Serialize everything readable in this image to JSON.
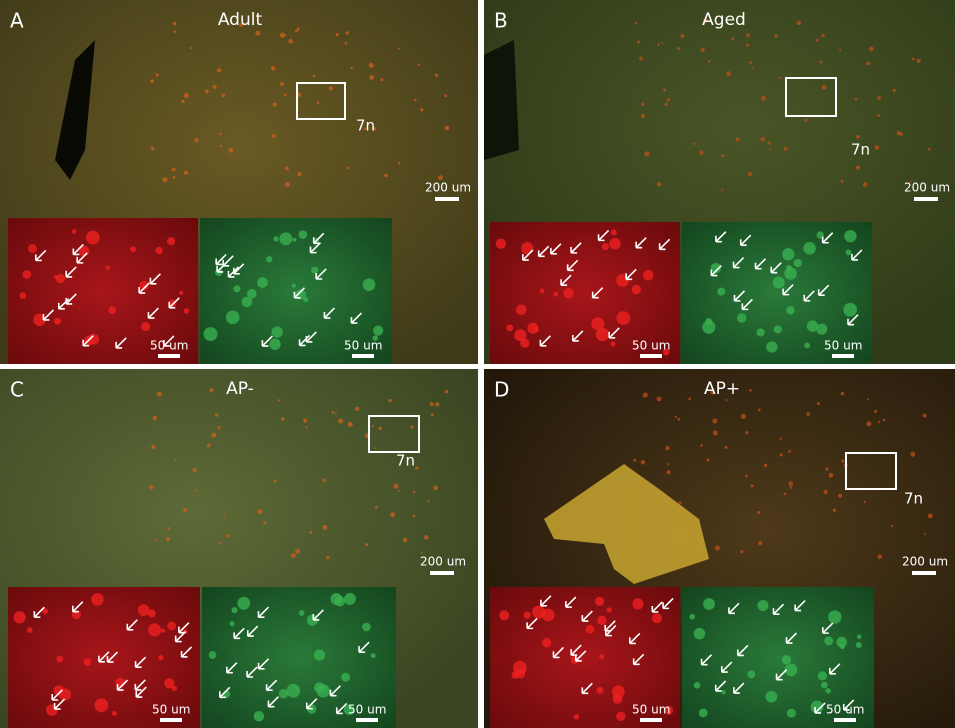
{
  "panels": [
    {
      "letter": "A",
      "title": "Adult",
      "region_label": "7n",
      "scale_label": "200 um",
      "insets": [
        {
          "scale_label": "50 um"
        },
        {
          "scale_label": "50 um"
        }
      ]
    },
    {
      "letter": "B",
      "title": "Aged",
      "region_label": "7n",
      "scale_label": "200 um",
      "insets": [
        {
          "scale_label": "50 um"
        },
        {
          "scale_label": "50 um"
        }
      ]
    },
    {
      "letter": "C",
      "title": "AP-",
      "region_label": "7n",
      "scale_label": "200 um",
      "insets": [
        {
          "scale_label": "50 um"
        },
        {
          "scale_label": "50 um"
        }
      ]
    },
    {
      "letter": "D",
      "title": "AP+",
      "region_label": "7n",
      "scale_label": "200 um",
      "insets": [
        {
          "scale_label": "50 um"
        },
        {
          "scale_label": "50 um"
        }
      ]
    }
  ]
}
